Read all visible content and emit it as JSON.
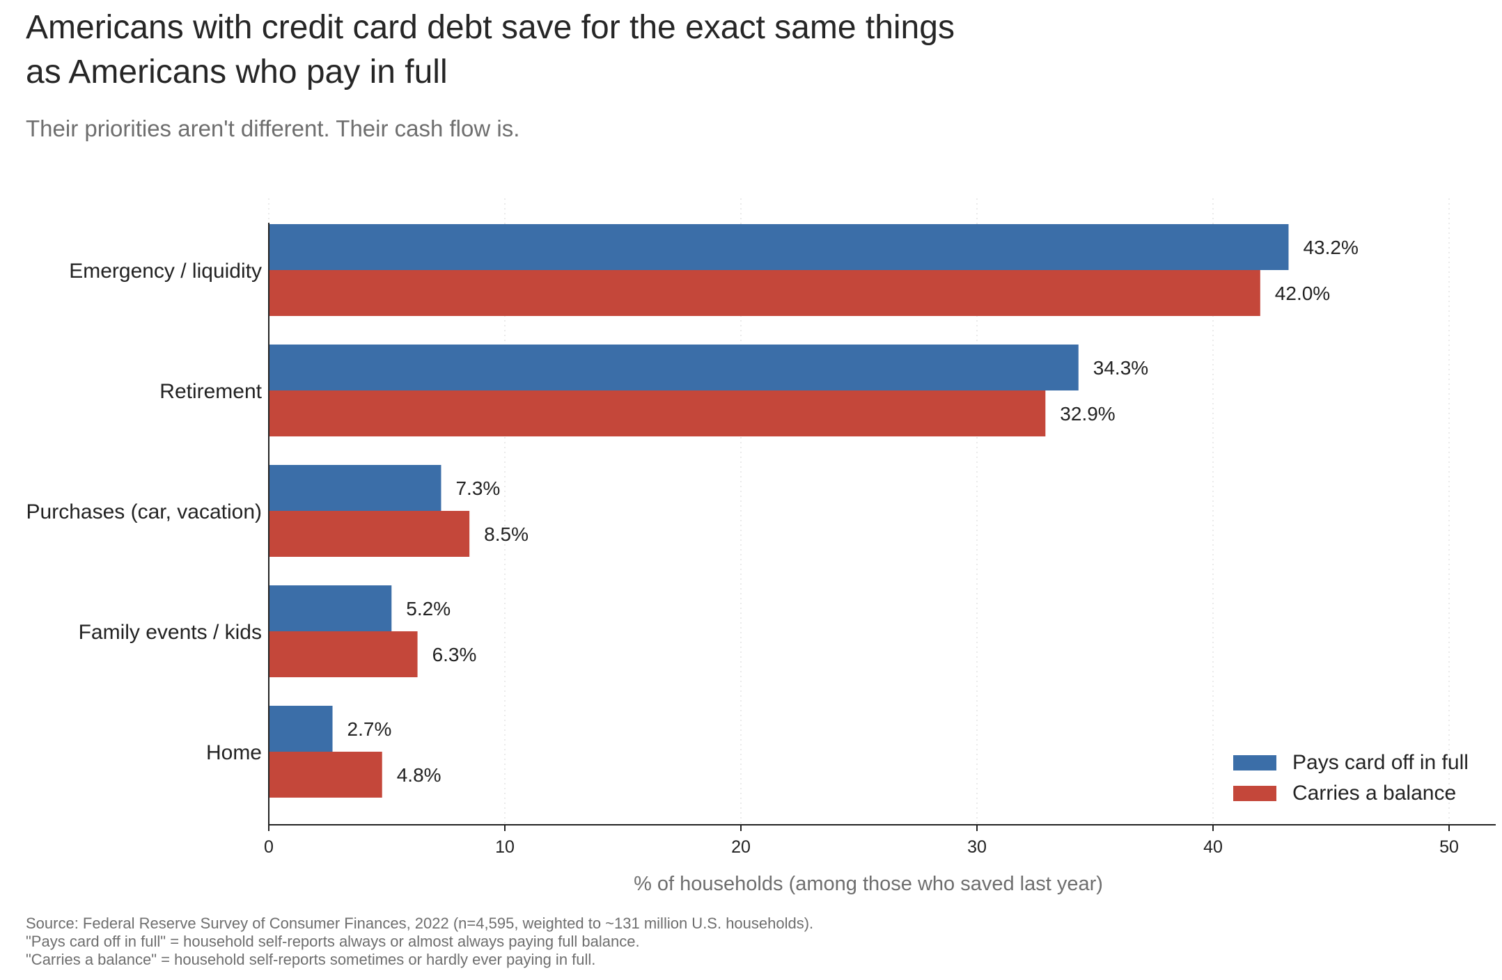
{
  "title_line1": "Americans with credit card debt save for the exact same things",
  "title_line2": "as Americans who pay in full",
  "subtitle": "Their priorities aren't different. Their cash flow is.",
  "footnotes": [
    "Source: Federal Reserve Survey of Consumer Finances, 2022 (n=4,595, weighted to ~131 million U.S. households).",
    "\"Pays card off in full\" = household self-reports always or almost always paying full balance.",
    "\"Carries a balance\" = household self-reports sometimes or hardly ever paying in full."
  ],
  "chart_data": {
    "type": "bar",
    "orientation": "horizontal",
    "title": "Americans with credit card debt save for the exact same things as Americans who pay in full",
    "subtitle": "Their priorities aren't different. Their cash flow is.",
    "categories": [
      "Emergency / liquidity",
      "Retirement",
      "Purchases (car, vacation)",
      "Family events / kids",
      "Home"
    ],
    "series": [
      {
        "name": "Pays card off in full",
        "color": "#3b6ea8",
        "values": [
          43.2,
          34.3,
          7.3,
          5.2,
          2.7
        ],
        "labels": [
          "43.2%",
          "34.3%",
          "7.3%",
          "5.2%",
          "2.7%"
        ]
      },
      {
        "name": "Carries a balance",
        "color": "#c4473a",
        "values": [
          42.0,
          32.9,
          8.5,
          6.3,
          4.8
        ],
        "labels": [
          "42.0%",
          "32.9%",
          "8.5%",
          "6.3%",
          "4.8%"
        ]
      }
    ],
    "xlabel": "% of households (among those who saved last year)",
    "ylabel": "",
    "xlim": [
      0,
      52
    ],
    "xticks": [
      0,
      10,
      20,
      30,
      40,
      50
    ],
    "grid": "vertical dotted",
    "legend": "bottom-right"
  }
}
